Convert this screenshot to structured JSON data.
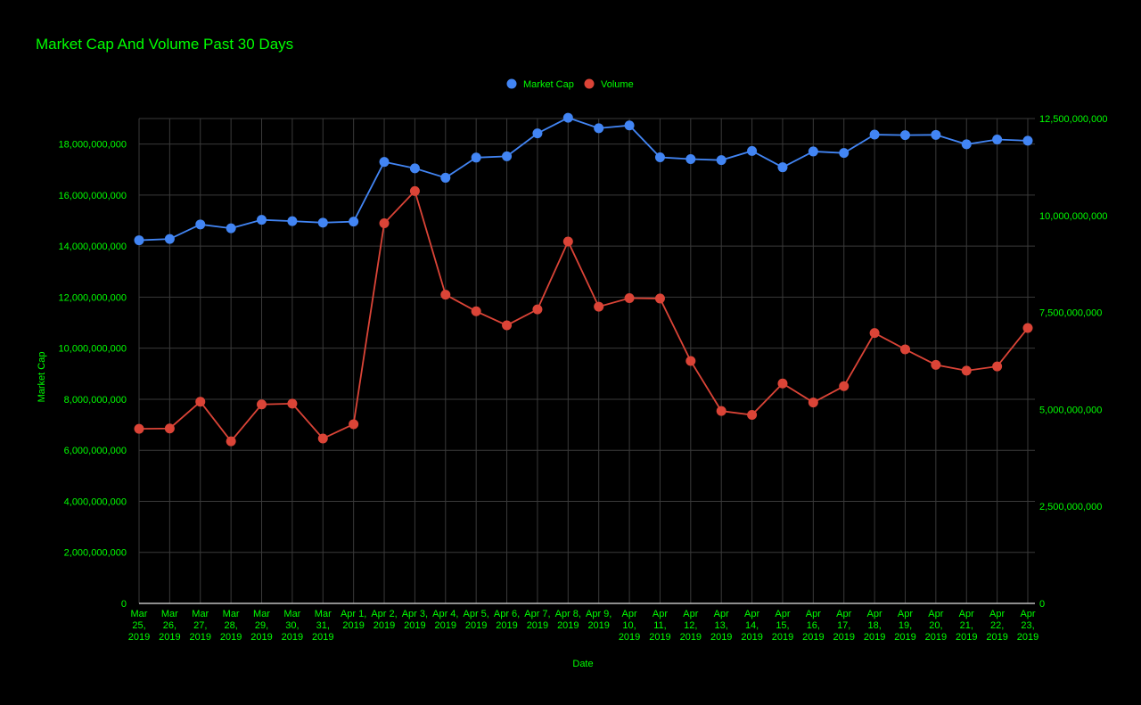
{
  "chart_data": {
    "type": "line",
    "title": "Market Cap And Volume Past 30 Days",
    "xlabel": "Date",
    "ylabel": "Market Cap",
    "y2label": "",
    "ylim": [
      0,
      19000000000
    ],
    "y2lim": [
      0,
      12500000000
    ],
    "y_ticks": [
      "0",
      "2,000,000,000",
      "4,000,000,000",
      "6,000,000,000",
      "8,000,000,000",
      "10,000,000,000",
      "12,000,000,000",
      "14,000,000,000",
      "16,000,000,000",
      "18,000,000,000"
    ],
    "y_tick_values": [
      0,
      2000000000,
      4000000000,
      6000000000,
      8000000000,
      10000000000,
      12000000000,
      14000000000,
      16000000000,
      18000000000
    ],
    "y2_ticks": [
      "0",
      "2,500,000,000",
      "5,000,000,000",
      "7,500,000,000",
      "10,000,000,000",
      "12,500,000,000"
    ],
    "y2_tick_values": [
      0,
      2500000000,
      5000000000,
      7500000000,
      10000000000,
      12500000000
    ],
    "grid": true,
    "legend_position": "top-center",
    "categories": [
      [
        "Mar",
        "25,",
        "2019"
      ],
      [
        "Mar",
        "26,",
        "2019"
      ],
      [
        "Mar",
        "27,",
        "2019"
      ],
      [
        "Mar",
        "28,",
        "2019"
      ],
      [
        "Mar",
        "29,",
        "2019"
      ],
      [
        "Mar",
        "30,",
        "2019"
      ],
      [
        "Mar",
        "31,",
        "2019"
      ],
      [
        "Apr 1,",
        "2019"
      ],
      [
        "Apr 2,",
        "2019"
      ],
      [
        "Apr 3,",
        "2019"
      ],
      [
        "Apr 4,",
        "2019"
      ],
      [
        "Apr 5,",
        "2019"
      ],
      [
        "Apr 6,",
        "2019"
      ],
      [
        "Apr 7,",
        "2019"
      ],
      [
        "Apr 8,",
        "2019"
      ],
      [
        "Apr 9,",
        "2019"
      ],
      [
        "Apr",
        "10,",
        "2019"
      ],
      [
        "Apr",
        "11,",
        "2019"
      ],
      [
        "Apr",
        "12,",
        "2019"
      ],
      [
        "Apr",
        "13,",
        "2019"
      ],
      [
        "Apr",
        "14,",
        "2019"
      ],
      [
        "Apr",
        "15,",
        "2019"
      ],
      [
        "Apr",
        "16,",
        "2019"
      ],
      [
        "Apr",
        "17,",
        "2019"
      ],
      [
        "Apr",
        "18,",
        "2019"
      ],
      [
        "Apr",
        "19,",
        "2019"
      ],
      [
        "Apr",
        "20,",
        "2019"
      ],
      [
        "Apr",
        "21,",
        "2019"
      ],
      [
        "Apr",
        "22,",
        "2019"
      ],
      [
        "Apr",
        "23,",
        "2019"
      ]
    ],
    "series": [
      {
        "name": "Market Cap",
        "axis": "left",
        "color": "#4285f4",
        "values": [
          14230000000,
          14280000000,
          14850000000,
          14700000000,
          15030000000,
          14980000000,
          14920000000,
          14960000000,
          17300000000,
          17050000000,
          16680000000,
          17470000000,
          17520000000,
          18420000000,
          19030000000,
          18620000000,
          18730000000,
          17480000000,
          17410000000,
          17370000000,
          17730000000,
          17090000000,
          17710000000,
          17650000000,
          18370000000,
          18350000000,
          18360000000,
          17990000000,
          18180000000,
          18130000000
        ]
      },
      {
        "name": "Volume",
        "axis": "right",
        "color": "#db4437",
        "values": [
          4500000000,
          4510000000,
          5200000000,
          4180000000,
          5130000000,
          5150000000,
          4250000000,
          4620000000,
          9800000000,
          10630000000,
          7960000000,
          7530000000,
          7170000000,
          7580000000,
          9330000000,
          7650000000,
          7870000000,
          7860000000,
          6250000000,
          4960000000,
          4860000000,
          5670000000,
          5180000000,
          5600000000,
          6970000000,
          6550000000,
          6150000000,
          6000000000,
          6110000000,
          7100000000
        ]
      }
    ]
  },
  "colors": {
    "background": "#000000",
    "text": "#00ff00",
    "grid": "#3a3a3a",
    "axis": "#bdbdbd"
  }
}
